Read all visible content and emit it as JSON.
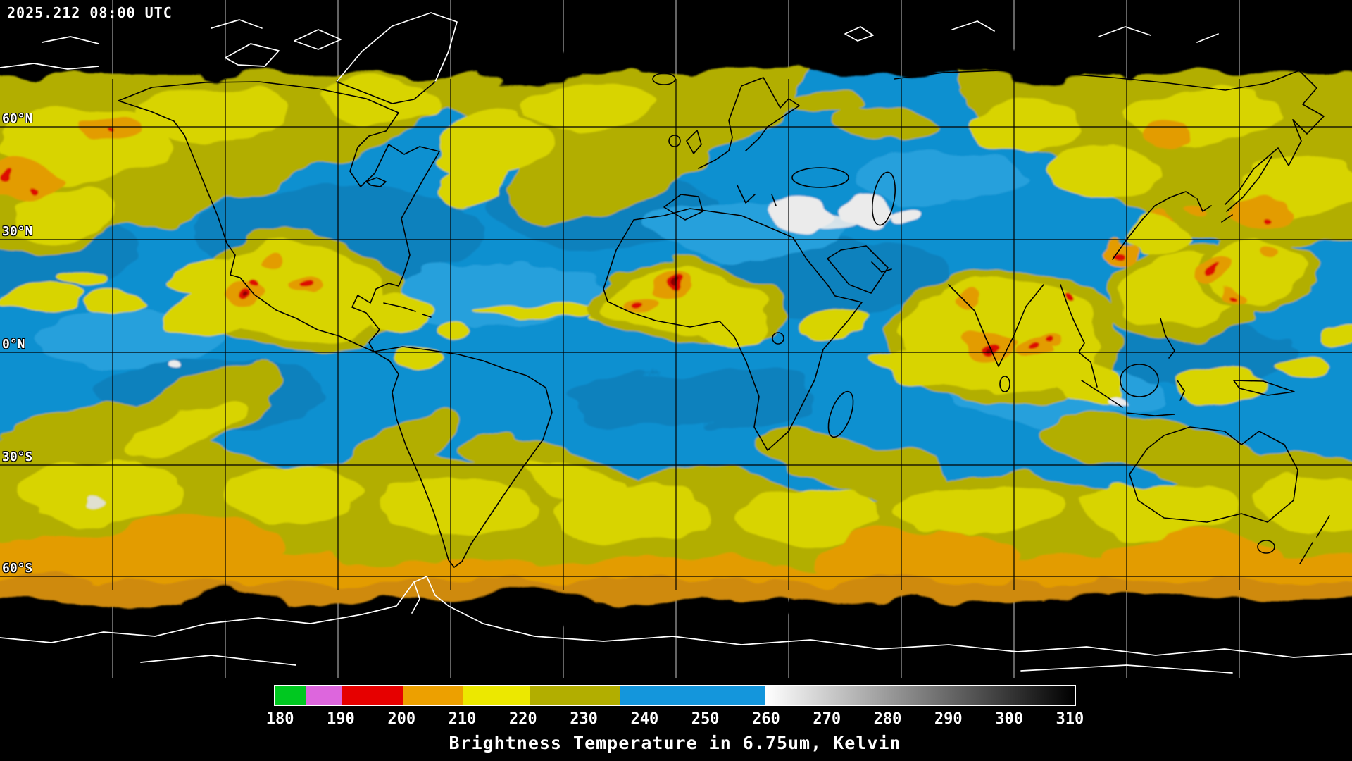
{
  "header": {
    "timestamp": "2025.212 08:00 UTC"
  },
  "map": {
    "description": "Global water vapor satellite composite, equirectangular, 30-degree graticule",
    "lat_labels": [
      "60°N",
      "30°N",
      "0°N",
      "30°S",
      "60°S"
    ],
    "palette": {
      "warm_dry_blue": "#1090d0",
      "moist_olive": "#b2ae00",
      "cold_cloud_yellow": "#d8d400",
      "colder_orange": "#e39c00",
      "coldest_red": "#dd0f00",
      "very_cold_white": "#ebebeb",
      "background": "#000000",
      "coastline_over_data": "#000000",
      "coastline_over_space": "#ffffff"
    }
  },
  "colorbar": {
    "title": "Brightness Temperature in 6.75um, Kelvin",
    "min": 179,
    "max": 311,
    "ticks": [
      "180",
      "190",
      "200",
      "210",
      "220",
      "230",
      "240",
      "250",
      "260",
      "270",
      "280",
      "290",
      "300",
      "310"
    ],
    "segments": [
      {
        "from": 179,
        "to": 184,
        "color": "#00c820"
      },
      {
        "from": 184,
        "to": 190,
        "color": "#dd66dd"
      },
      {
        "from": 190,
        "to": 200,
        "color": "#e60000"
      },
      {
        "from": 200,
        "to": 210,
        "color": "#eda000"
      },
      {
        "from": 210,
        "to": 221,
        "color": "#ece800"
      },
      {
        "from": 221,
        "to": 236,
        "color": "#b2ae00"
      },
      {
        "from": 236,
        "to": 260,
        "color": "#1496dc"
      },
      {
        "from": 260,
        "to": 311,
        "gradient": [
          "#ffffff",
          "#000000"
        ]
      }
    ]
  }
}
